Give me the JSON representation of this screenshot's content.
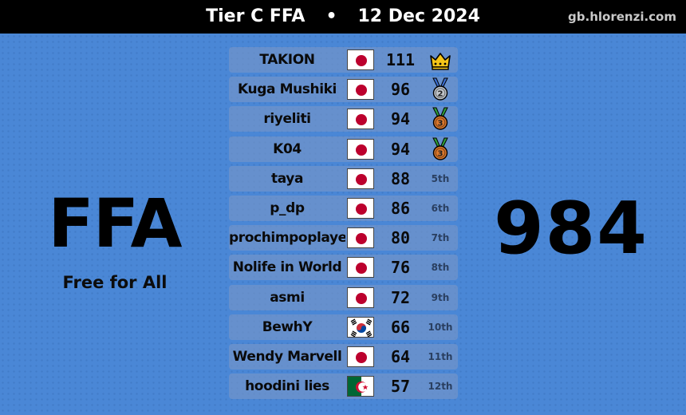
{
  "header": {
    "title": "Tier C FFA",
    "separator": "•",
    "date": "12 Dec 2024",
    "site": "gb.hlorenzi.com"
  },
  "mode": {
    "short": "FFA",
    "full": "Free for All"
  },
  "total_score": "984",
  "colors": {
    "background": "#4a87d6",
    "topbar": "#000000",
    "row": "#7896c8",
    "gold": "#f5c518",
    "silver": "#c0c4c8",
    "bronze": "#d9772c",
    "ribbon_blue": "#3b6fd1",
    "ribbon_green": "#2e9d3a"
  },
  "players": [
    {
      "name": "TAKION",
      "flag": "jp",
      "score": "111",
      "rank": "",
      "award": "crown-icon"
    },
    {
      "name": "Kuga Mushiki",
      "flag": "jp",
      "score": "96",
      "rank": "",
      "award": "silver-medal-icon",
      "medal_number": "2"
    },
    {
      "name": "riyeliti",
      "flag": "jp",
      "score": "94",
      "rank": "",
      "award": "bronze-medal-icon",
      "medal_number": "3"
    },
    {
      "name": "K04",
      "flag": "jp",
      "score": "94",
      "rank": "",
      "award": "bronze-medal-icon",
      "medal_number": "3"
    },
    {
      "name": "taya",
      "flag": "jp",
      "score": "88",
      "rank": "5th",
      "award": ""
    },
    {
      "name": "p_dp",
      "flag": "jp",
      "score": "86",
      "rank": "6th",
      "award": ""
    },
    {
      "name": "prochimpoplayer",
      "flag": "jp",
      "score": "80",
      "rank": "7th",
      "award": ""
    },
    {
      "name": "Nolife in World",
      "flag": "jp",
      "score": "76",
      "rank": "8th",
      "award": ""
    },
    {
      "name": "asmi",
      "flag": "jp",
      "score": "72",
      "rank": "9th",
      "award": ""
    },
    {
      "name": "BewhY",
      "flag": "kr",
      "score": "66",
      "rank": "10th",
      "award": ""
    },
    {
      "name": "Wendy Marvell",
      "flag": "jp",
      "score": "64",
      "rank": "11th",
      "award": ""
    },
    {
      "name": "hoodini lies",
      "flag": "dz",
      "score": "57",
      "rank": "12th",
      "award": ""
    }
  ]
}
